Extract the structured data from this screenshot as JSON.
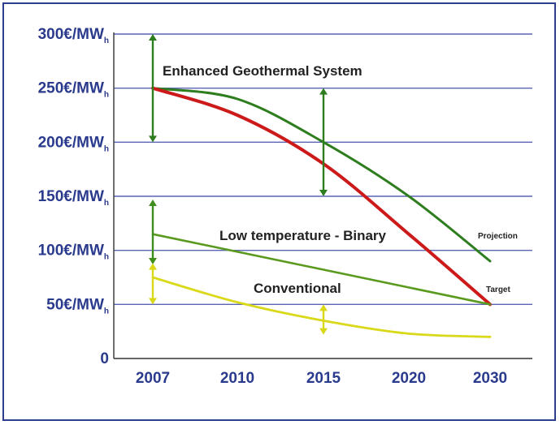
{
  "chart_data": {
    "type": "line",
    "x": [
      2007,
      2010,
      2015,
      2020,
      2030
    ],
    "x_categories": [
      "2007",
      "2010",
      "2015",
      "2020",
      "2030"
    ],
    "ylim": [
      0,
      300
    ],
    "y_ticks": [
      {
        "value": 300,
        "main": "300€/MW",
        "sub": "h"
      },
      {
        "value": 250,
        "main": "250€/MW",
        "sub": "h"
      },
      {
        "value": 200,
        "main": "200€/MW",
        "sub": "h"
      },
      {
        "value": 150,
        "main": "150€/MW",
        "sub": "h"
      },
      {
        "value": 100,
        "main": "100€/MW",
        "sub": "h"
      },
      {
        "value": 50,
        "main": "50€/MW",
        "sub": "h"
      },
      {
        "value": 0,
        "main": "0",
        "sub": ""
      }
    ],
    "grid": true,
    "series": [
      {
        "id": "egs_projection",
        "color": "#2e7d1e",
        "points": [
          [
            2007,
            250
          ],
          [
            2010,
            240
          ],
          [
            2015,
            200
          ],
          [
            2020,
            150
          ],
          [
            2030,
            90
          ]
        ]
      },
      {
        "id": "egs_target",
        "color": "#cc1a1a",
        "points": [
          [
            2007,
            250
          ],
          [
            2010,
            225
          ],
          [
            2015,
            180
          ],
          [
            2020,
            115
          ],
          [
            2030,
            50
          ]
        ]
      },
      {
        "id": "low_temp_binary",
        "color": "#5a9a1e",
        "points": [
          [
            2007,
            115
          ],
          [
            2030,
            50
          ]
        ]
      },
      {
        "id": "conventional",
        "color": "#d9d91a",
        "points": [
          [
            2007,
            75
          ],
          [
            2010,
            52
          ],
          [
            2015,
            35
          ],
          [
            2020,
            23
          ],
          [
            2030,
            20
          ]
        ]
      }
    ],
    "ranges": [
      {
        "id": "egs_range",
        "x": 2007,
        "low": 200,
        "high": 300,
        "color": "#2e7d1e"
      },
      {
        "id": "egs_range_2015",
        "x": 2015,
        "low": 150,
        "high": 250,
        "color": "#2e7d1e"
      },
      {
        "id": "lowtemp_range",
        "x": 2007,
        "low": 87,
        "high": 147,
        "color": "#3e8e1e"
      },
      {
        "id": "conv_range",
        "x": 2007,
        "low": 50,
        "high": 88,
        "color": "#d9d91a"
      },
      {
        "id": "conv_range_2015",
        "x": 2015,
        "low": 22,
        "high": 50,
        "color": "#d9d91a"
      }
    ],
    "annotations": {
      "egs": "Enhanced Geothermal System",
      "low_temp": "Low temperature - Binary",
      "conventional": "Conventional",
      "projection": "Projection",
      "target": "Target"
    }
  }
}
